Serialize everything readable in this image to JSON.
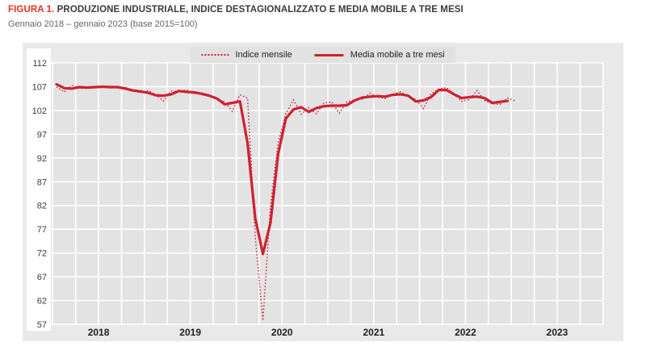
{
  "figure": {
    "label": "FIGURA 1.",
    "title": "PRODUZIONE INDUSTRIALE, INDICE DESTAGIONALIZZATO E MEDIA MOBILE A TRE MESI",
    "subtitle": "Gennaio 2018 – gennaio 2023 (base 2015=100)"
  },
  "legend": {
    "items": [
      {
        "label": "Indice mensile",
        "style": "dotted"
      },
      {
        "label": "Media mobile a tre mesi",
        "style": "solid"
      }
    ]
  },
  "colors": {
    "series_red": "#cc2233",
    "title_red": "#e5321e",
    "chart_bg": "#e9e9e9",
    "panel_bg": "#e3e3e3",
    "grid_white": "#ffffff",
    "tick_text": "#3d3d3d",
    "year_text": "#1f1f1f"
  },
  "chart_data": {
    "type": "line",
    "title": "PRODUZIONE INDUSTRIALE, INDICE DESTAGIONALIZZATO E MEDIA MOBILE A TRE MESI",
    "subtitle": "Gennaio 2018 – gennaio 2023 (base 2015=100)",
    "x_start": "2018-01",
    "x_end": "2023-01",
    "x_year_labels": [
      "2018",
      "2019",
      "2020",
      "2021",
      "2022",
      "2023"
    ],
    "y_ticks": [
      57,
      62,
      67,
      72,
      77,
      82,
      87,
      92,
      97,
      102,
      107,
      112
    ],
    "ylim": [
      57,
      112
    ],
    "grid": "white gridlines on gray panel, vertical every 3 months",
    "legend_position": "top-center",
    "series": [
      {
        "name": "Indice mensile",
        "style": "dotted",
        "start_month": "2018-01",
        "values": [
          107.0,
          105.9,
          107.3,
          106.6,
          106.8,
          107.0,
          106.8,
          107.1,
          106.8,
          106.9,
          106.1,
          105.7,
          106.2,
          105.3,
          104.0,
          106.1,
          106.0,
          106.3,
          105.5,
          105.7,
          105.2,
          104.4,
          103.8,
          101.8,
          105.3,
          104.6,
          75.5,
          57.8,
          82.1,
          95.3,
          101.3,
          104.2,
          101.2,
          102.6,
          101.3,
          103.6,
          103.8,
          101.4,
          103.8,
          104.2,
          104.4,
          105.6,
          104.8,
          104.5,
          105.4,
          105.9,
          105.0,
          104.3,
          102.4,
          105.5,
          106.5,
          106.8,
          105.6,
          103.9,
          104.3,
          106.2,
          104.1,
          103.4,
          103.3,
          104.6,
          104.0
        ]
      },
      {
        "name": "Media mobile a tre mesi",
        "style": "solid",
        "start_month": "2018-01",
        "values": [
          107.5,
          106.7,
          106.6,
          106.9,
          106.8,
          106.9,
          107.0,
          106.9,
          106.9,
          106.6,
          106.2,
          106.0,
          105.7,
          105.2,
          105.1,
          105.4,
          106.1,
          105.9,
          105.8,
          105.5,
          105.1,
          104.5,
          103.3,
          103.6,
          103.9,
          95.1,
          79.3,
          71.8,
          78.4,
          92.9,
          100.3,
          102.2,
          102.7,
          101.7,
          102.5,
          102.9,
          103.0,
          103.0,
          103.1,
          104.1,
          104.7,
          104.9,
          105.0,
          104.9,
          105.3,
          105.4,
          105.1,
          103.9,
          104.1,
          104.8,
          106.3,
          106.3,
          105.4,
          104.6,
          104.8,
          104.9,
          104.6,
          103.6,
          103.8,
          104.0
        ]
      }
    ]
  }
}
